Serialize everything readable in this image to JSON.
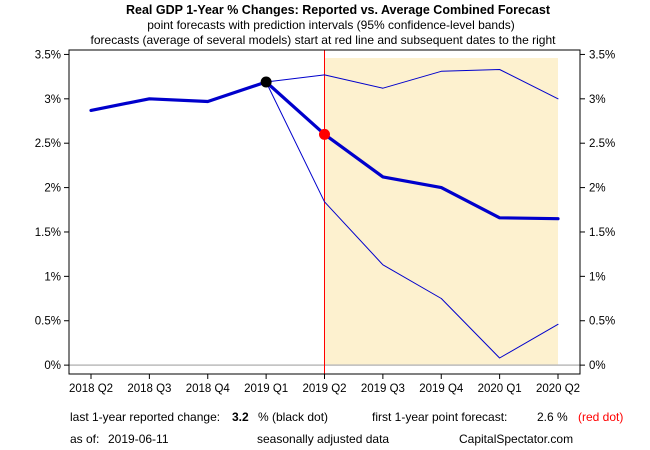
{
  "chart_data": {
    "type": "line",
    "title": "Real GDP 1-Year % Changes: Reported vs. Average Combined Forecast",
    "subtitle_1": "point forecasts with prediction intervals (95% confidence-level bands)",
    "subtitle_2": "forecasts (average of several models) start at red line and subsequent dates to the right",
    "x": [
      "2018 Q2",
      "2018 Q3",
      "2018 Q4",
      "2019 Q1",
      "2019 Q2",
      "2019 Q3",
      "2019 Q4",
      "2020 Q1",
      "2020 Q2"
    ],
    "ylim": [
      -0.1,
      3.55
    ],
    "yticks": [
      0,
      0.5,
      1,
      1.5,
      2,
      2.5,
      3,
      3.5
    ],
    "ytick_labels": [
      "0%",
      "0.5%",
      "1%",
      "1.5%",
      "2%",
      "2.5%",
      "3%",
      "3.5%"
    ],
    "reported": [
      2.87,
      3.0,
      2.97,
      3.19,
      null,
      null,
      null,
      null,
      null
    ],
    "forecast": [
      null,
      null,
      null,
      3.19,
      2.6,
      2.12,
      2.0,
      1.66,
      1.65
    ],
    "upper_band": [
      null,
      null,
      null,
      3.19,
      3.27,
      3.12,
      3.31,
      3.33,
      3.0
    ],
    "lower_band": [
      null,
      null,
      null,
      3.19,
      1.84,
      1.13,
      0.75,
      0.08,
      0.46
    ],
    "forecast_start": "2019 Q2",
    "black_dot": {
      "x": "2019 Q1",
      "y": 3.19
    },
    "red_dot": {
      "x": "2019 Q2",
      "y": 2.6
    },
    "grid": false,
    "colors": {
      "line": "#0000cc",
      "reported_dot": "#000000",
      "forecast_dot": "#ff0000",
      "forecast_region": "#fdf1cf",
      "forecast_start_line": "#ff0000",
      "zero_line": "#bbbbbb"
    }
  },
  "footer": {
    "reported_label": "last 1-year reported change:",
    "reported_value": "3.2",
    "reported_suffix": "% (black dot)",
    "forecast_label": "first 1-year point forecast:",
    "forecast_value": "2.6 %",
    "forecast_suffix": "(red dot)",
    "as_of_label": "as of:",
    "as_of_date": "2019-06-11",
    "note": "seasonally adjusted data",
    "source": "CapitalSpectator.com"
  }
}
